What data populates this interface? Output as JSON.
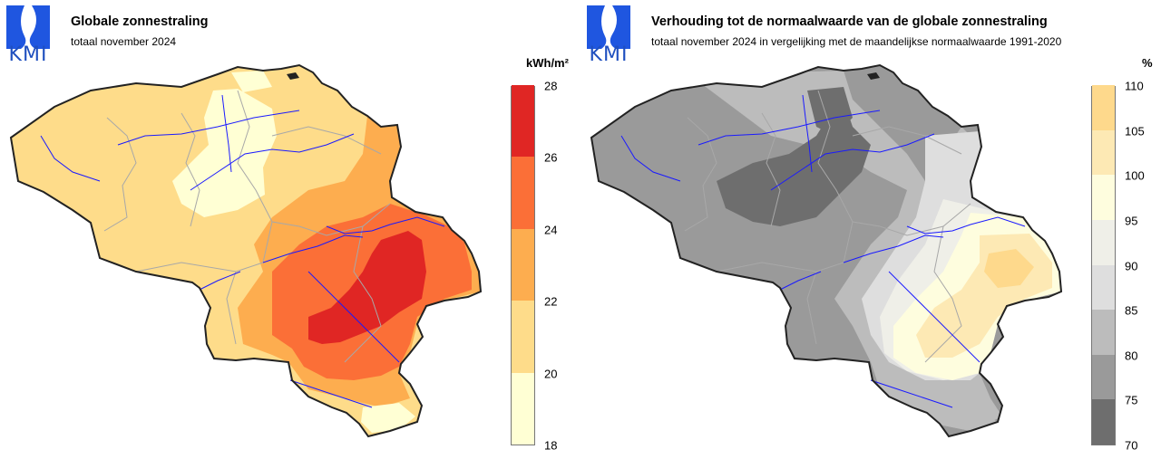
{
  "brand": {
    "logo_text": "KMI"
  },
  "left": {
    "title": "Globale zonnestraling",
    "subtitle": "totaal november 2024",
    "unit": "kWh/m²",
    "legend": {
      "ticks": [
        "28",
        "26",
        "24",
        "22",
        "20",
        "18"
      ],
      "colors": [
        "#ffffd4",
        "#fedc8a",
        "#fdad4f",
        "#fb6f37",
        "#e02624"
      ]
    },
    "zone_levels": {
      "west": 20,
      "central_north_low": 18,
      "east_north": 22,
      "ardennes_mid": 24,
      "ardennes_core": 26,
      "south_tip": 20
    }
  },
  "right": {
    "title": "Verhouding tot de normaalwaarde van de globale zonnestraling",
    "subtitle": "totaal november 2024 in vergelijking met de maandelijkse normaalwaarde 1991-2020",
    "unit": "%",
    "legend": {
      "ticks": [
        "110",
        "105",
        "100",
        "95",
        "90",
        "85",
        "80",
        "75",
        "70"
      ],
      "colors": [
        "#6e6e6e",
        "#9a9a9a",
        "#bcbcbc",
        "#dedede",
        "#efefe8",
        "#fefdde",
        "#fde9b4",
        "#fed98c"
      ]
    },
    "zone_levels": {
      "north_center": 75,
      "west": 80,
      "central": 85,
      "east": 90,
      "southeast": 100,
      "southeast_core": 105,
      "south_tip": 85
    }
  }
}
